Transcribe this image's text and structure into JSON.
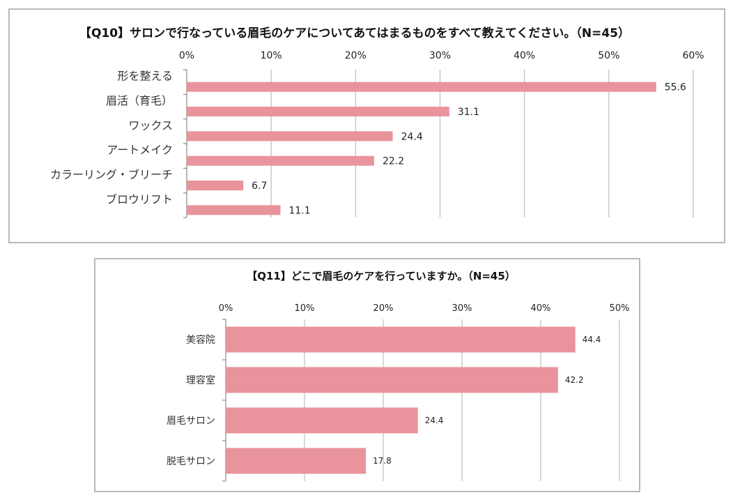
{
  "chart_data": [
    {
      "type": "bar",
      "orientation": "horizontal",
      "title": "【Q10】サロンで行なっている眉毛のケアについてあてはまるものをすべて教えてください。（N=45）",
      "categories": [
        "形を整える",
        "眉活（育毛）",
        "ワックス",
        "アートメイク",
        "カラーリング・ブリーチ",
        "ブロウリフト"
      ],
      "values": [
        55.6,
        31.1,
        24.4,
        22.2,
        6.7,
        11.1
      ],
      "value_labels": [
        "55.6",
        "31.1",
        "24.4",
        "22.2",
        "6.7",
        "11.1"
      ],
      "xlim": [
        0,
        60
      ],
      "ticks": [
        0,
        10,
        20,
        30,
        40,
        50,
        60
      ],
      "tick_labels": [
        "0%",
        "10%",
        "20%",
        "30%",
        "40%",
        "50%",
        "60%"
      ],
      "xlabel": "",
      "ylabel": "",
      "grid": true,
      "bar_color": "#e9939c"
    },
    {
      "type": "bar",
      "orientation": "horizontal",
      "title": "【Q11】どこで眉毛のケアを行っていますか。（N=45）",
      "categories": [
        "美容院",
        "理容室",
        "眉毛サロン",
        "脱毛サロン"
      ],
      "values": [
        44.4,
        42.2,
        24.4,
        17.8
      ],
      "value_labels": [
        "44.4",
        "42.2",
        "24.4",
        "17.8"
      ],
      "xlim": [
        0,
        50
      ],
      "ticks": [
        0,
        10,
        20,
        30,
        40,
        50
      ],
      "tick_labels": [
        "0%",
        "10%",
        "20%",
        "30%",
        "40%",
        "50%"
      ],
      "xlabel": "",
      "ylabel": "",
      "grid": true,
      "bar_color": "#e9939c"
    }
  ]
}
